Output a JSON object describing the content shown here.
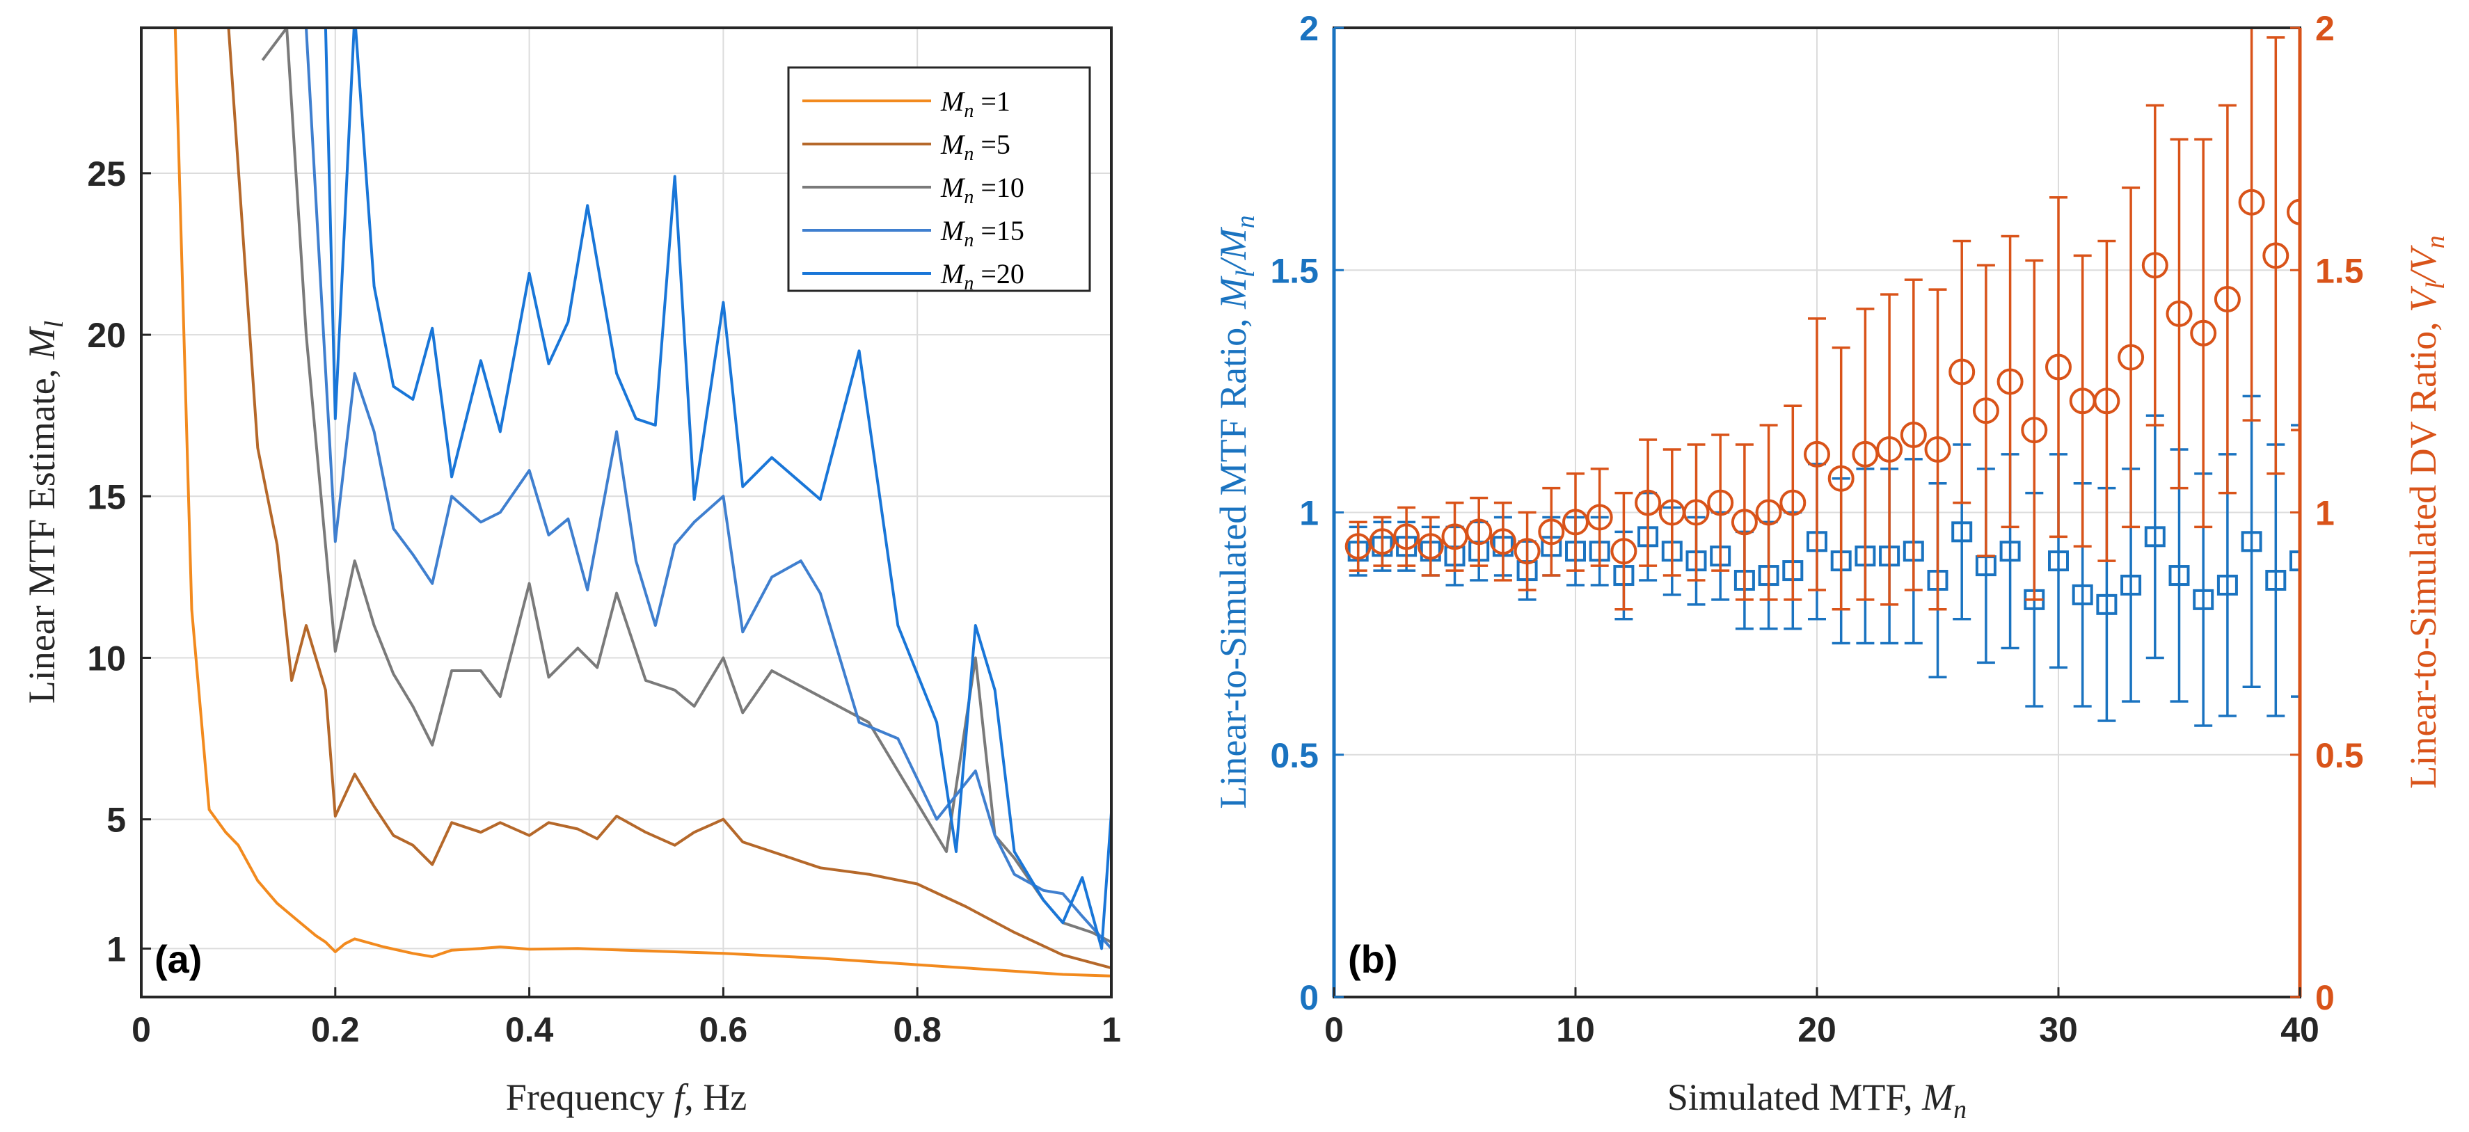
{
  "chart_data": [
    {
      "type": "line",
      "panel_label": "(a)",
      "xlabel": "Frequency f, Hz",
      "ylabel": "Linear MTF Estimate, M",
      "ylabel_sub": "l",
      "xlim": [
        0,
        1
      ],
      "ylim": [
        -0.5,
        29.5
      ],
      "xticks": [
        0,
        0.2,
        0.4,
        0.6,
        0.8,
        1
      ],
      "xtick_labels": [
        "0",
        "0.2",
        "0.4",
        "0.6",
        "0.8",
        "1"
      ],
      "yticks": [
        1,
        5,
        10,
        15,
        20,
        25
      ],
      "ytick_labels": [
        "1",
        "5",
        "10",
        "15",
        "20",
        "25"
      ],
      "grid": true,
      "legend_position": "top-right",
      "series": [
        {
          "name": "M_n =1",
          "legend_main": "M",
          "legend_sub": "n",
          "legend_value": " =1",
          "color": "#f28a1e",
          "x": [
            0.035,
            0.052,
            0.07,
            0.087,
            0.1,
            0.12,
            0.14,
            0.16,
            0.18,
            0.19,
            0.2,
            0.21,
            0.22,
            0.25,
            0.28,
            0.3,
            0.32,
            0.35,
            0.37,
            0.4,
            0.45,
            0.5,
            0.55,
            0.6,
            0.7,
            0.8,
            0.9,
            0.95,
            1.0
          ],
          "values": [
            29.5,
            11.5,
            5.3,
            4.6,
            4.2,
            3.1,
            2.4,
            1.9,
            1.4,
            1.2,
            0.9,
            1.15,
            1.3,
            1.05,
            0.85,
            0.75,
            0.95,
            1.0,
            1.05,
            0.98,
            1.0,
            0.95,
            0.9,
            0.85,
            0.7,
            0.5,
            0.3,
            0.2,
            0.15
          ]
        },
        {
          "name": "M_n =5",
          "legend_main": "M",
          "legend_sub": "n",
          "legend_value": " =5",
          "color": "#b5682a",
          "x": [
            0.09,
            0.12,
            0.14,
            0.155,
            0.17,
            0.19,
            0.2,
            0.22,
            0.24,
            0.26,
            0.28,
            0.3,
            0.32,
            0.35,
            0.37,
            0.4,
            0.42,
            0.45,
            0.47,
            0.49,
            0.52,
            0.55,
            0.57,
            0.6,
            0.62,
            0.65,
            0.7,
            0.75,
            0.8,
            0.85,
            0.9,
            0.95,
            1.0
          ],
          "values": [
            29.5,
            16.5,
            13.5,
            9.3,
            11.0,
            9.0,
            5.1,
            6.4,
            5.4,
            4.5,
            4.2,
            3.6,
            4.9,
            4.6,
            4.9,
            4.5,
            4.9,
            4.7,
            4.4,
            5.1,
            4.6,
            4.2,
            4.6,
            5.0,
            4.3,
            4.0,
            3.5,
            3.3,
            3.0,
            2.3,
            1.5,
            0.8,
            0.4
          ]
        },
        {
          "name": "M_n =10",
          "legend_main": "M",
          "legend_sub": "n",
          "legend_value": " =10",
          "color": "#7a7a7a",
          "x": [
            0.125,
            0.15,
            0.17,
            0.2,
            0.22,
            0.24,
            0.26,
            0.28,
            0.3,
            0.32,
            0.35,
            0.37,
            0.4,
            0.42,
            0.45,
            0.47,
            0.49,
            0.52,
            0.55,
            0.57,
            0.6,
            0.62,
            0.65,
            0.7,
            0.75,
            0.8,
            0.83,
            0.86,
            0.88,
            0.9,
            0.93,
            0.95,
            0.98,
            1.0
          ],
          "values": [
            28.5,
            29.5,
            20.0,
            10.2,
            13.0,
            11.0,
            9.5,
            8.5,
            7.3,
            9.6,
            9.6,
            8.8,
            12.3,
            9.4,
            10.3,
            9.7,
            12.0,
            9.3,
            9.0,
            8.5,
            10.0,
            8.3,
            9.6,
            8.8,
            8.0,
            5.5,
            4.0,
            10.0,
            4.5,
            3.8,
            2.5,
            1.8,
            1.5,
            1.2
          ]
        },
        {
          "name": "M_n =15",
          "legend_main": "M",
          "legend_sub": "n",
          "legend_value": " =15",
          "color": "#3f7fcf",
          "x": [
            0.17,
            0.2,
            0.22,
            0.24,
            0.26,
            0.28,
            0.3,
            0.32,
            0.35,
            0.37,
            0.4,
            0.42,
            0.44,
            0.46,
            0.49,
            0.51,
            0.53,
            0.55,
            0.57,
            0.6,
            0.62,
            0.65,
            0.68,
            0.7,
            0.74,
            0.78,
            0.82,
            0.86,
            0.88,
            0.9,
            0.93,
            0.95,
            0.97,
            1.0
          ],
          "values": [
            29.5,
            13.6,
            18.8,
            17.0,
            14.0,
            13.2,
            12.3,
            15.0,
            14.2,
            14.5,
            15.8,
            13.8,
            14.3,
            12.1,
            17.0,
            13.0,
            11.0,
            13.5,
            14.2,
            15.0,
            10.8,
            12.5,
            13.0,
            12.0,
            8.0,
            7.5,
            5.0,
            6.5,
            4.5,
            3.3,
            2.8,
            2.7,
            2.0,
            1.0
          ]
        },
        {
          "name": "M_n =20",
          "legend_main": "M",
          "legend_sub": "n",
          "legend_value": " =20",
          "color": "#1976d8",
          "x": [
            0.19,
            0.2,
            0.22,
            0.24,
            0.26,
            0.28,
            0.3,
            0.32,
            0.35,
            0.37,
            0.4,
            0.42,
            0.44,
            0.46,
            0.49,
            0.51,
            0.53,
            0.55,
            0.57,
            0.6,
            0.62,
            0.65,
            0.7,
            0.74,
            0.78,
            0.82,
            0.84,
            0.86,
            0.88,
            0.9,
            0.93,
            0.95,
            0.97,
            0.99,
            1.0
          ],
          "values": [
            29.5,
            17.4,
            29.9,
            21.5,
            18.4,
            18.0,
            20.2,
            15.6,
            19.2,
            17.0,
            21.9,
            19.1,
            20.4,
            24.0,
            18.8,
            17.4,
            17.2,
            24.9,
            14.9,
            21.0,
            15.3,
            16.2,
            14.9,
            19.5,
            11.0,
            8.0,
            4.0,
            11.0,
            9.0,
            4.0,
            2.5,
            1.8,
            3.2,
            1.0,
            5.2
          ]
        }
      ]
    },
    {
      "type": "scatter",
      "panel_label": "(b)",
      "xlabel": "Simulated MTF, M",
      "xlabel_sub": "n",
      "ylabel_left": "Linear-to-Simulated MTF Ratio, M",
      "ylabel_left_sub": "l",
      "ylabel_left_tail": "/M",
      "ylabel_left_tail_sub": "n",
      "ylabel_right": "Linear-to-Simulated DV Ratio, V",
      "ylabel_right_sub": "l",
      "ylabel_right_tail": "/V",
      "ylabel_right_tail_sub": "n",
      "xlim": [
        0,
        40
      ],
      "ylim_left": [
        0,
        2
      ],
      "ylim_right": [
        0,
        2
      ],
      "xticks": [
        0,
        10,
        20,
        30,
        40
      ],
      "xtick_labels": [
        "0",
        "10",
        "20",
        "30",
        "40"
      ],
      "yticks_left": [
        0,
        0.5,
        1,
        1.5,
        2
      ],
      "ytick_left_labels": [
        "0",
        "0.5",
        "1",
        "1.5",
        "2"
      ],
      "yticks_right": [
        0,
        0.5,
        1,
        1.5,
        2
      ],
      "ytick_right_labels": [
        "0",
        "0.5",
        "1",
        "1.5",
        "2"
      ],
      "grid": true,
      "series": [
        {
          "name": "MTF ratio",
          "axis": "left",
          "marker": "square",
          "color": "#1a73c0",
          "x": [
            1,
            2,
            3,
            4,
            5,
            6,
            7,
            8,
            9,
            10,
            11,
            12,
            13,
            14,
            15,
            16,
            17,
            18,
            19,
            20,
            21,
            22,
            23,
            24,
            25,
            26,
            27,
            28,
            29,
            30,
            31,
            32,
            33,
            34,
            35,
            36,
            37,
            38,
            39,
            40
          ],
          "values": [
            0.92,
            0.93,
            0.93,
            0.92,
            0.91,
            0.92,
            0.93,
            0.88,
            0.93,
            0.92,
            0.92,
            0.87,
            0.95,
            0.92,
            0.9,
            0.91,
            0.86,
            0.87,
            0.88,
            0.94,
            0.9,
            0.91,
            0.91,
            0.92,
            0.86,
            0.96,
            0.89,
            0.92,
            0.82,
            0.9,
            0.83,
            0.81,
            0.85,
            0.95,
            0.87,
            0.82,
            0.85,
            0.94,
            0.86,
            0.9
          ],
          "err": [
            0.05,
            0.05,
            0.05,
            0.05,
            0.06,
            0.06,
            0.06,
            0.06,
            0.06,
            0.07,
            0.07,
            0.09,
            0.09,
            0.09,
            0.09,
            0.09,
            0.1,
            0.11,
            0.12,
            0.16,
            0.17,
            0.18,
            0.18,
            0.19,
            0.2,
            0.18,
            0.2,
            0.2,
            0.22,
            0.22,
            0.23,
            0.24,
            0.24,
            0.25,
            0.26,
            0.26,
            0.27,
            0.3,
            0.28,
            0.28
          ]
        },
        {
          "name": "DV ratio",
          "axis": "right",
          "marker": "circle",
          "color": "#d95319",
          "x": [
            1,
            2,
            3,
            4,
            5,
            6,
            7,
            8,
            9,
            10,
            11,
            12,
            13,
            14,
            15,
            16,
            17,
            18,
            19,
            20,
            21,
            22,
            23,
            24,
            25,
            26,
            27,
            28,
            29,
            30,
            31,
            32,
            33,
            34,
            35,
            36,
            37,
            38,
            39,
            40
          ],
          "values": [
            0.93,
            0.94,
            0.95,
            0.93,
            0.95,
            0.96,
            0.94,
            0.92,
            0.96,
            0.98,
            0.99,
            0.92,
            1.02,
            1.0,
            1.0,
            1.02,
            0.98,
            1.0,
            1.02,
            1.12,
            1.07,
            1.12,
            1.13,
            1.16,
            1.13,
            1.29,
            1.21,
            1.27,
            1.17,
            1.3,
            1.23,
            1.23,
            1.32,
            1.51,
            1.41,
            1.37,
            1.44,
            1.64,
            1.53,
            1.62
          ],
          "err": [
            0.05,
            0.05,
            0.06,
            0.06,
            0.07,
            0.07,
            0.08,
            0.08,
            0.09,
            0.1,
            0.1,
            0.12,
            0.13,
            0.13,
            0.14,
            0.14,
            0.16,
            0.18,
            0.2,
            0.28,
            0.27,
            0.3,
            0.32,
            0.32,
            0.33,
            0.27,
            0.3,
            0.3,
            0.35,
            0.35,
            0.3,
            0.33,
            0.35,
            0.33,
            0.36,
            0.4,
            0.4,
            0.45,
            0.45,
            0.45
          ]
        }
      ]
    }
  ]
}
